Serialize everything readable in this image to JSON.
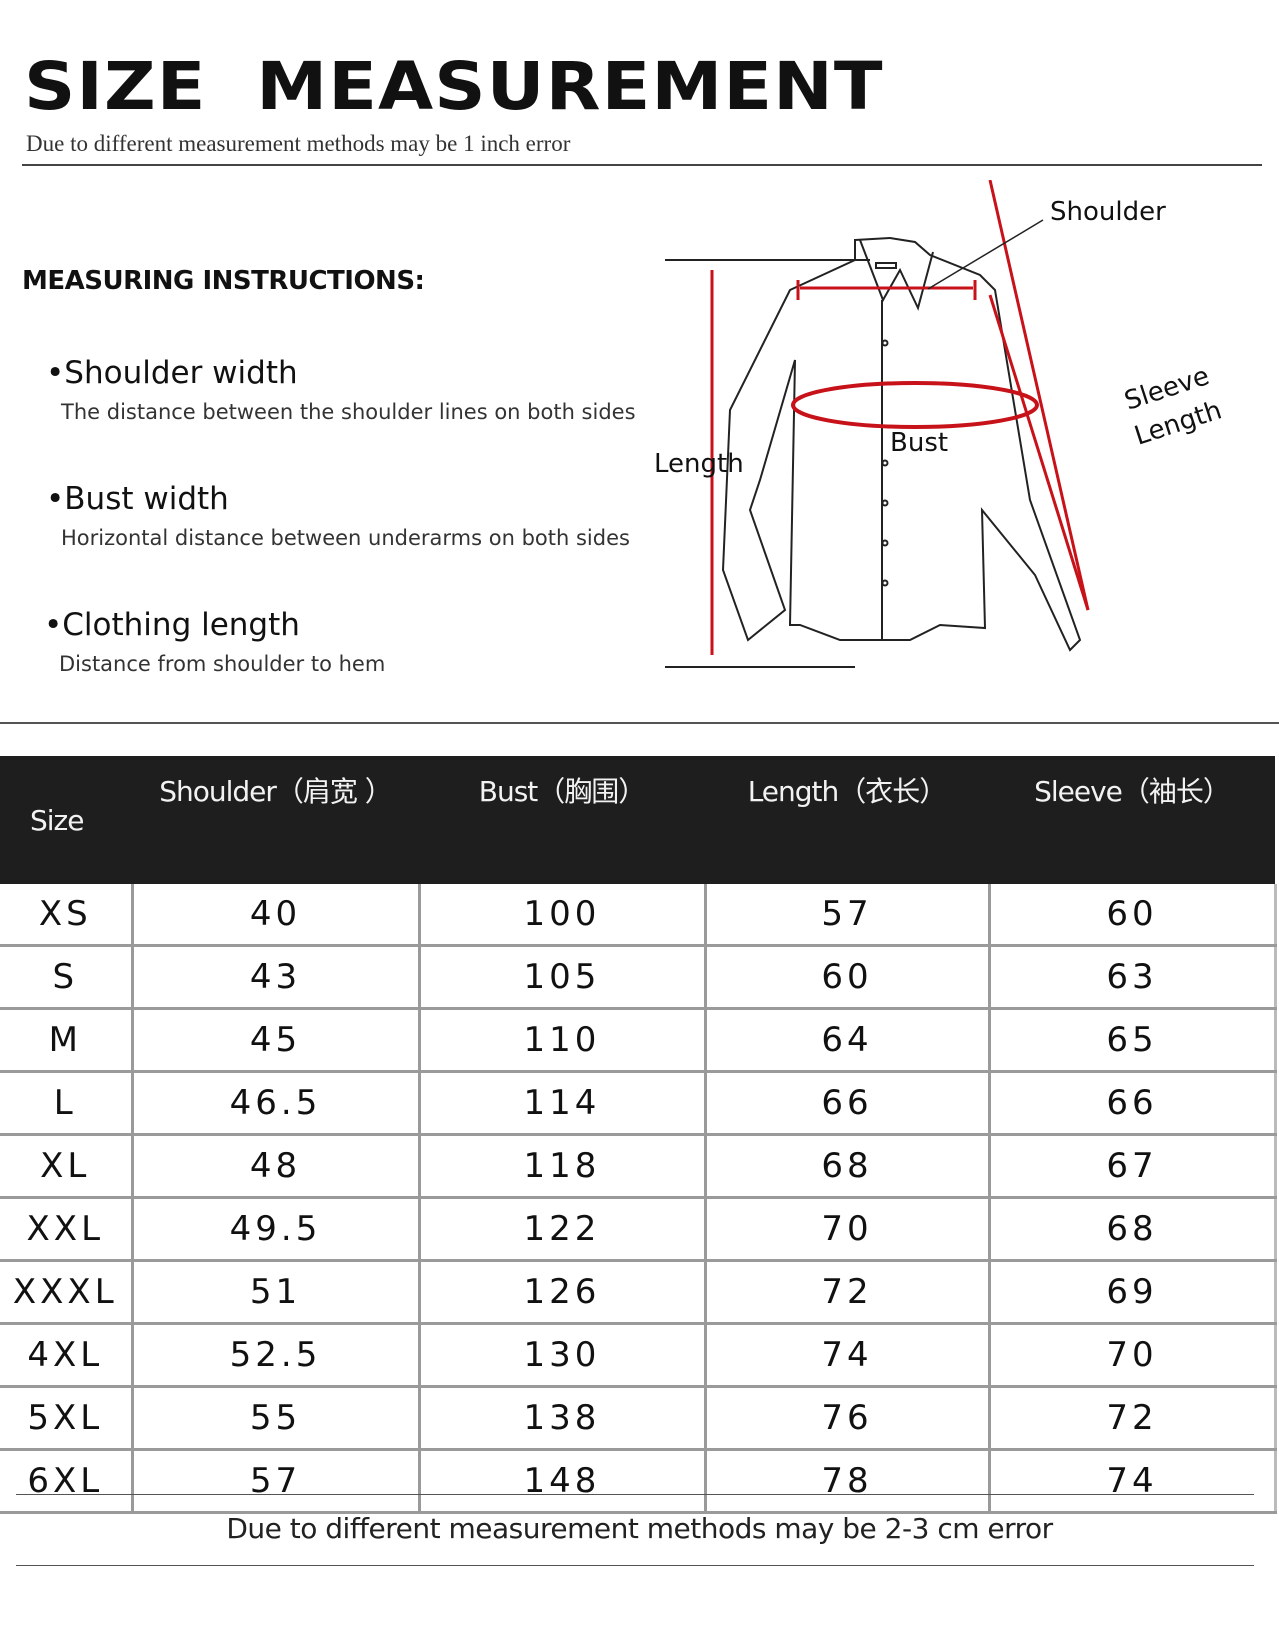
{
  "header": {
    "title": "SIZE MEASUREMENT",
    "subtitle": "Due to different measurement methods may be 1 inch error"
  },
  "instructions": {
    "heading": "MEASURING INSTRUCTIONS:",
    "items": [
      {
        "title": "•Shoulder width",
        "desc": "The distance between the shoulder lines on both sides"
      },
      {
        "title": "•Bust width",
        "desc": "Horizontal distance between underarms on both sides"
      },
      {
        "title": "•Clothing length",
        "desc": "Distance from shoulder to hem"
      }
    ]
  },
  "diagram": {
    "labels": {
      "shoulder": "Shoulder",
      "sleeve1": "Sleeve",
      "sleeve2": "Length",
      "bust": "Bust",
      "length": "Length"
    },
    "accent_color": "#c8121a"
  },
  "table": {
    "headers": [
      "Size",
      "Shoulder（肩宽 ）",
      "Bust（胸围）",
      "Length（衣长）",
      "Sleeve（袖长）"
    ],
    "rows": [
      [
        "XS",
        "40",
        "100",
        "57",
        "60"
      ],
      [
        "S",
        "43",
        "105",
        "60",
        "63"
      ],
      [
        "M",
        "45",
        "110",
        "64",
        "65"
      ],
      [
        "L",
        "46.5",
        "114",
        "66",
        "66"
      ],
      [
        "XL",
        "48",
        "118",
        "68",
        "67"
      ],
      [
        "XXL",
        "49.5",
        "122",
        "70",
        "68"
      ],
      [
        "XXXL",
        "51",
        "126",
        "72",
        "69"
      ],
      [
        "4XL",
        "52.5",
        "130",
        "74",
        "70"
      ],
      [
        "5XL",
        "55",
        "138",
        "76",
        "72"
      ],
      [
        "6XL",
        "57",
        "148",
        "78",
        "74"
      ]
    ]
  },
  "footer": "Due to different measurement methods may be 2-3 cm error"
}
